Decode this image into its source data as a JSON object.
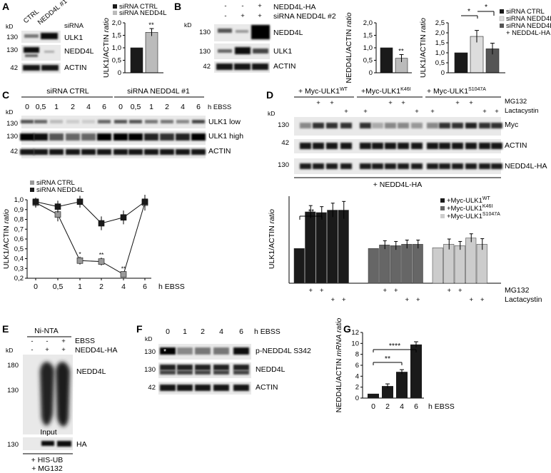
{
  "panels": {
    "A": {
      "letter": "A",
      "lanes": [
        "CTRL",
        "NEDD4L #1"
      ],
      "lane_header": "siRNA",
      "kd_label": "kD",
      "bands": [
        {
          "mw": "130",
          "name": "ULK1"
        },
        {
          "mw": "130",
          "name": "NEDD4L"
        },
        {
          "mw": "42",
          "name": "ACTIN"
        }
      ],
      "legend": [
        "siRNA CTRL",
        "siRNA NEDD4L"
      ],
      "sig": "**"
    },
    "B": {
      "letter": "B",
      "row_labels": [
        "NEDD4L-HA",
        "siRNA NEDD4L #2"
      ],
      "row1_signs": [
        "-",
        "-",
        "+"
      ],
      "row2_signs": [
        "-",
        "+",
        "+"
      ],
      "kd_label": "kD",
      "bands": [
        {
          "mw": "130",
          "name": "NEDD4L"
        },
        {
          "mw": "130",
          "name": "ULK1"
        },
        {
          "mw": "42",
          "name": "ACTIN"
        }
      ],
      "legend": [
        "siRNA CTRL",
        "siRNA NEDD4L",
        "siRNA NEDD4L",
        "+ NEDD4L-HA"
      ],
      "sig": [
        "*",
        "*",
        "**"
      ]
    },
    "C": {
      "letter": "C",
      "groups": [
        "siRNA CTRL",
        "siRNA NEDD4L #1"
      ],
      "lanes": [
        "0",
        "0,5",
        "1",
        "2",
        "4",
        "6",
        "0",
        "0,5",
        "1",
        "2",
        "4",
        "6"
      ],
      "time_unit": "h EBSS",
      "kd_label": "kD",
      "bands": [
        {
          "mw": "130",
          "name": "ULK1 low"
        },
        {
          "mw": "130",
          "name": "ULK1 high"
        },
        {
          "mw": "42",
          "name": "ACTIN"
        }
      ],
      "sig": [
        "*",
        "**",
        "**"
      ]
    },
    "D": {
      "letter": "D",
      "constructs": [
        {
          "base": "+ Myc-ULK1",
          "sup": "WT"
        },
        {
          "base": "+Myc-ULK1",
          "sup": "K46I"
        },
        {
          "base": "+ Myc-ULK1",
          "sup": "S1047A"
        }
      ],
      "treatments": [
        "MG132",
        "Lactacystin"
      ],
      "kd_label": "kD",
      "bands": [
        {
          "mw": "130",
          "name": "Myc"
        },
        {
          "mw": "42",
          "name": "ACTIN"
        },
        {
          "mw": "130",
          "name": "NEDD4L-HA"
        }
      ],
      "footer": "+ NEDD4L-HA",
      "legend": [
        {
          "base": "+Myc-ULK1",
          "sup": "WT"
        },
        {
          "base": "+Myc-ULK1",
          "sup": "K46I"
        },
        {
          "base": "+Myc-ULK1",
          "sup": "S1047A"
        }
      ],
      "sig": "**"
    },
    "E": {
      "letter": "E",
      "pulldown": "Ni-NTA",
      "row_labels": [
        "EBSS",
        "NEDD4L-HA"
      ],
      "row1_signs": [
        "-",
        "-",
        "+"
      ],
      "row2_signs": [
        "-",
        "+",
        "+"
      ],
      "kd_label": "kD",
      "markers": [
        "180",
        "130"
      ],
      "band_name": "NEDD4L",
      "input_label": "Input",
      "input_mw": "130",
      "input_band": "HA",
      "footer": [
        "+ HIS-UB",
        "+ MG132"
      ]
    },
    "F": {
      "letter": "F",
      "lanes": [
        "0",
        "1",
        "2",
        "4",
        "6"
      ],
      "time_unit": "h EBSS",
      "kd_label": "kD",
      "bands": [
        {
          "mw": "130",
          "name": "p-NEDD4L S342"
        },
        {
          "mw": "130",
          "name": "NEDD4L"
        },
        {
          "mw": "42",
          "name": "ACTIN"
        }
      ],
      "marker": "*"
    },
    "G": {
      "letter": "G",
      "sig": [
        "****",
        "**"
      ]
    }
  },
  "chart_data": [
    {
      "panel": "A",
      "type": "bar",
      "categories": [
        "siRNA CTRL",
        "siRNA NEDD4L"
      ],
      "values": [
        1.0,
        1.62
      ],
      "errors": [
        0,
        0.15
      ],
      "colors": [
        "#1a1a1a",
        "#bbbbbb"
      ],
      "ylabel": "ULK1/ACTIN ratio",
      "ylim": [
        0,
        2.0
      ],
      "ticks": [
        "0",
        "0,5",
        "1,0",
        "1,5",
        "2,0"
      ]
    },
    {
      "panel": "B-left",
      "type": "bar",
      "categories": [
        "siRNA CTRL",
        "siRNA NEDD4L"
      ],
      "values": [
        1.0,
        0.58
      ],
      "errors": [
        0,
        0.15
      ],
      "colors": [
        "#1a1a1a",
        "#bbbbbb"
      ],
      "ylabel": "NEDD4L/ACTIN ratio",
      "ylim": [
        0,
        2.0
      ],
      "ticks": [
        "0",
        "0,5",
        "1,0",
        "1,5",
        "2,0"
      ]
    },
    {
      "panel": "B-right",
      "type": "bar",
      "categories": [
        "siRNA CTRL",
        "siRNA NEDD4L",
        "siRNA NEDD4L + NEDD4L-HA"
      ],
      "values": [
        1.0,
        1.82,
        1.2
      ],
      "errors": [
        0,
        0.3,
        0.28
      ],
      "colors": [
        "#1a1a1a",
        "#dddddd",
        "#555555"
      ],
      "ylabel": "ULK1/ACTIN ratio",
      "ylim": [
        0,
        2.5
      ],
      "ticks": [
        "0",
        "0,5",
        "1,0",
        "1,5",
        "2,0",
        "2,5"
      ]
    },
    {
      "panel": "C",
      "type": "line",
      "x": [
        0,
        0.5,
        1,
        2,
        4,
        6
      ],
      "xticks": [
        "0",
        "0,5",
        "1",
        "2",
        "4",
        "6"
      ],
      "xlabel": "h EBSS",
      "series": [
        {
          "name": "siRNA CTRL",
          "values": [
            0.97,
            0.85,
            0.38,
            0.37,
            0.24,
            0.97
          ],
          "errors": [
            0.05,
            0.07,
            0.04,
            0.04,
            0.03,
            0.08
          ],
          "color": "#999999"
        },
        {
          "name": "siRNA NEDD4L",
          "values": [
            0.98,
            0.93,
            0.98,
            0.76,
            0.82,
            0.98
          ],
          "errors": [
            0.04,
            0.06,
            0.06,
            0.07,
            0.07,
            0.07
          ],
          "color": "#1a1a1a"
        }
      ],
      "ylabel": "ULK1/ACTIN ratio",
      "ylim": [
        0.2,
        1.0
      ],
      "ticks": [
        "0,2",
        "0,3",
        "0,4",
        "0,5",
        "0,6",
        "0,7",
        "0,8",
        "0,9",
        "1,0"
      ]
    },
    {
      "panel": "D",
      "type": "bar",
      "groups": [
        "+Myc-ULK1 WT",
        "+Myc-ULK1 K46I",
        "+Myc-ULK1 S1047A"
      ],
      "series": [
        {
          "name": "+Myc-ULK1 WT",
          "values": [
            1.0,
            2.05,
            2.03,
            2.1,
            2.1
          ],
          "errors": [
            0,
            0.18,
            0.17,
            0.2,
            0.25
          ],
          "color": "#1a1a1a"
        },
        {
          "name": "+Myc-ULK1 K46I",
          "values": [
            1.0,
            1.1,
            1.08,
            1.12,
            1.12
          ],
          "errors": [
            0,
            0.12,
            0.12,
            0.12,
            0.12
          ],
          "color": "#666666"
        },
        {
          "name": "+Myc-ULK1 S1047A",
          "values": [
            1.02,
            1.12,
            1.08,
            1.3,
            1.12
          ],
          "errors": [
            0,
            0.15,
            0.12,
            0.12,
            0.16
          ],
          "color": "#cccccc"
        }
      ],
      "mg132": [
        "",
        "+",
        "+",
        "",
        ""
      ],
      "lactacystin": [
        "",
        "",
        "",
        "+",
        "+"
      ],
      "ylabel": "ULK1/ACTIN ratio",
      "ylim": [
        0,
        2.5
      ]
    },
    {
      "panel": "G",
      "type": "bar",
      "categories": [
        "0",
        "2",
        "4",
        "6"
      ],
      "values": [
        0.8,
        2.2,
        4.8,
        9.8
      ],
      "errors": [
        0,
        0.4,
        0.4,
        0.5
      ],
      "color": "#1a1a1a",
      "xlabel": "h EBSS",
      "ylabel": "NEDD4L/ACTIN mRNA ratio",
      "ylim": [
        0,
        12
      ],
      "ticks": [
        "0",
        "2",
        "4",
        "6",
        "8",
        "10",
        "12"
      ]
    }
  ]
}
